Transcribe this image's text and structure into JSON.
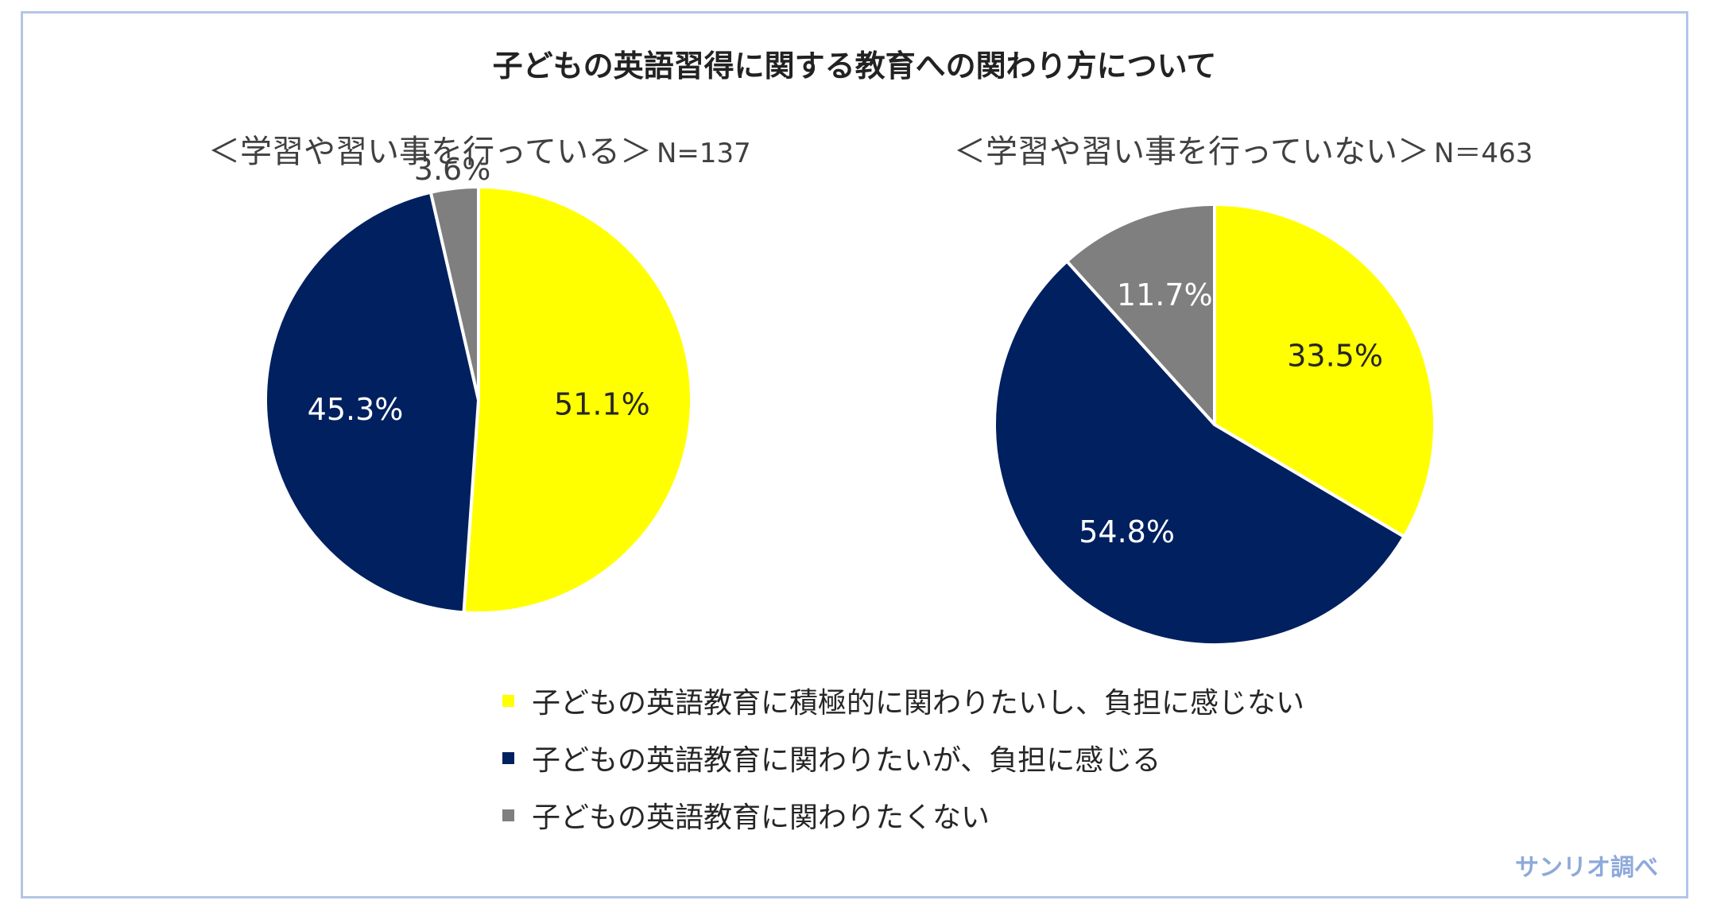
{
  "title": "子どもの英語習得に関する教育への関わり方について",
  "source": "サンリオ調べ",
  "colors": {
    "yellow": "#ffff00",
    "navy": "#002060",
    "gray": "#7f7f7f",
    "frame": "#b4c6e7",
    "source": "#8ea9db"
  },
  "legend": [
    {
      "label": "子どもの英語教育に積極的に関わりたいし、負担に感じない",
      "color": "#ffff00"
    },
    {
      "label": "子どもの英語教育に関わりたいが、負担に感じる",
      "color": "#002060"
    },
    {
      "label": "子どもの英語教育に関わりたくない",
      "color": "#7f7f7f"
    }
  ],
  "chart_data": [
    {
      "type": "pie",
      "title": "＜学習や習い事を行っている＞",
      "n_label": "N=137",
      "categories": [
        "子どもの英語教育に積極的に関わりたいし、負担に感じない",
        "子どもの英語教育に関わりたいが、負担に感じる",
        "子どもの英語教育に関わりたくない"
      ],
      "values": [
        51.1,
        45.3,
        3.6
      ],
      "labels": [
        "51.1%",
        "45.3%",
        "3.6%"
      ],
      "label_positions": [
        "inside",
        "inside",
        "outside"
      ],
      "colors": [
        "#ffff00",
        "#002060",
        "#7f7f7f"
      ],
      "label_colors": [
        "#262626",
        "#ffffff",
        "#404040"
      ]
    },
    {
      "type": "pie",
      "title": "＜学習や習い事を行っていない＞",
      "n_label": "N＝463",
      "categories": [
        "子どもの英語教育に積極的に関わりたいし、負担に感じない",
        "子どもの英語教育に関わりたいが、負担に感じる",
        "子どもの英語教育に関わりたくない"
      ],
      "values": [
        33.5,
        54.8,
        11.7
      ],
      "labels": [
        "33.5%",
        "54.8%",
        "11.7%"
      ],
      "label_positions": [
        "inside",
        "inside",
        "inside"
      ],
      "colors": [
        "#ffff00",
        "#002060",
        "#7f7f7f"
      ],
      "label_colors": [
        "#262626",
        "#ffffff",
        "#ffffff"
      ]
    }
  ]
}
